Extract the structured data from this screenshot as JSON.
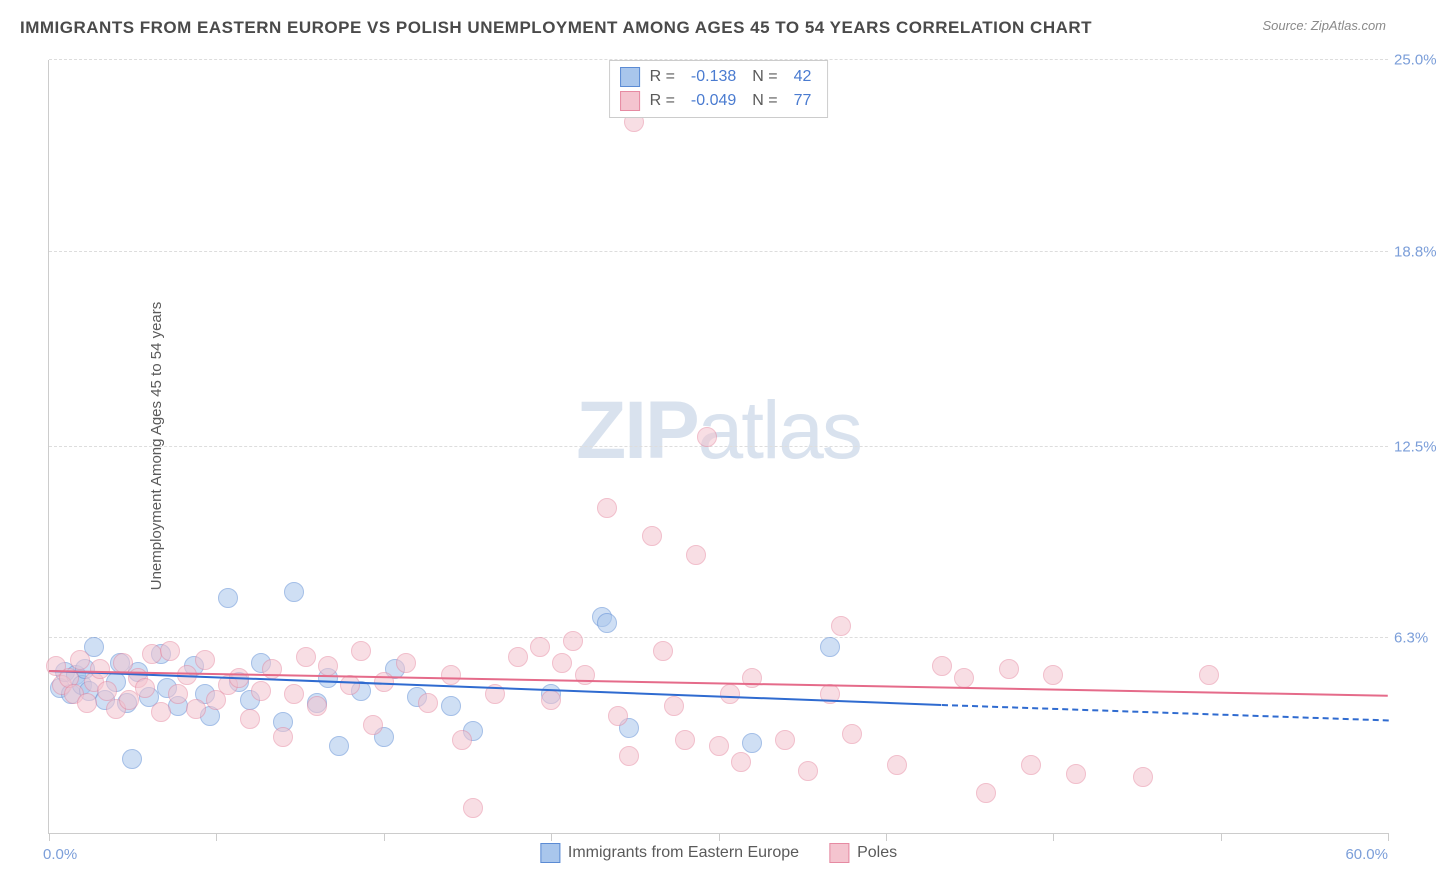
{
  "title": "IMMIGRANTS FROM EASTERN EUROPE VS POLISH UNEMPLOYMENT AMONG AGES 45 TO 54 YEARS CORRELATION CHART",
  "source": "Source: ZipAtlas.com",
  "y_axis_label": "Unemployment Among Ages 45 to 54 years",
  "watermark_zip": "ZIP",
  "watermark_atlas": "atlas",
  "chart": {
    "type": "scatter",
    "background_color": "#ffffff",
    "grid_color": "#dddddd",
    "axis_color": "#cccccc",
    "xlim": [
      0,
      60
    ],
    "ylim": [
      0,
      25
    ],
    "x_labels": {
      "min": "0.0%",
      "max": "60.0%"
    },
    "y_ticks": [
      {
        "value": 6.3,
        "label": "6.3%"
      },
      {
        "value": 12.5,
        "label": "12.5%"
      },
      {
        "value": 18.8,
        "label": "18.8%"
      },
      {
        "value": 25.0,
        "label": "25.0%"
      }
    ],
    "x_tick_positions": [
      0,
      7.5,
      15,
      22.5,
      30,
      37.5,
      45,
      52.5,
      60
    ],
    "marker_radius": 10,
    "marker_opacity": 0.55,
    "series": [
      {
        "name": "Immigrants from Eastern Europe",
        "color_fill": "#a9c6ec",
        "color_stroke": "#5b8bd4",
        "R": "-0.138",
        "N": "42",
        "trend": {
          "x0": 0,
          "y0": 5.2,
          "x1": 40,
          "y1": 4.1,
          "dash_x1": 60,
          "dash_y1": 3.6,
          "color": "#2f6bd0",
          "width": 2
        },
        "points": [
          [
            0.5,
            4.7
          ],
          [
            0.7,
            5.2
          ],
          [
            1.0,
            4.5
          ],
          [
            1.2,
            5.1
          ],
          [
            1.5,
            4.8
          ],
          [
            1.6,
            5.3
          ],
          [
            1.8,
            4.6
          ],
          [
            2.0,
            6.0
          ],
          [
            2.5,
            4.3
          ],
          [
            3.0,
            4.9
          ],
          [
            3.2,
            5.5
          ],
          [
            3.5,
            4.2
          ],
          [
            3.7,
            2.4
          ],
          [
            4.0,
            5.2
          ],
          [
            4.5,
            4.4
          ],
          [
            5.0,
            5.8
          ],
          [
            5.3,
            4.7
          ],
          [
            5.8,
            4.1
          ],
          [
            6.5,
            5.4
          ],
          [
            7.0,
            4.5
          ],
          [
            7.2,
            3.8
          ],
          [
            8.0,
            7.6
          ],
          [
            8.5,
            4.9
          ],
          [
            9.0,
            4.3
          ],
          [
            9.5,
            5.5
          ],
          [
            10.5,
            3.6
          ],
          [
            11.0,
            7.8
          ],
          [
            12.0,
            4.2
          ],
          [
            12.5,
            5.0
          ],
          [
            13.0,
            2.8
          ],
          [
            14.0,
            4.6
          ],
          [
            15.0,
            3.1
          ],
          [
            15.5,
            5.3
          ],
          [
            16.5,
            4.4
          ],
          [
            18.0,
            4.1
          ],
          [
            19.0,
            3.3
          ],
          [
            22.5,
            4.5
          ],
          [
            24.8,
            7.0
          ],
          [
            25.0,
            6.8
          ],
          [
            26.0,
            3.4
          ],
          [
            31.5,
            2.9
          ],
          [
            35.0,
            6.0
          ]
        ]
      },
      {
        "name": "Poles",
        "color_fill": "#f4c4cf",
        "color_stroke": "#e68aa2",
        "R": "-0.049",
        "N": "77",
        "trend": {
          "x0": 0,
          "y0": 5.2,
          "x1": 60,
          "y1": 4.4,
          "color": "#e56b8a",
          "width": 2
        },
        "points": [
          [
            0.3,
            5.4
          ],
          [
            0.6,
            4.8
          ],
          [
            0.9,
            5.0
          ],
          [
            1.1,
            4.5
          ],
          [
            1.4,
            5.6
          ],
          [
            1.7,
            4.2
          ],
          [
            2.0,
            4.9
          ],
          [
            2.3,
            5.3
          ],
          [
            2.6,
            4.6
          ],
          [
            3.0,
            4.0
          ],
          [
            3.3,
            5.5
          ],
          [
            3.6,
            4.3
          ],
          [
            4.0,
            5.0
          ],
          [
            4.3,
            4.7
          ],
          [
            4.6,
            5.8
          ],
          [
            5.0,
            3.9
          ],
          [
            5.4,
            5.9
          ],
          [
            5.8,
            4.5
          ],
          [
            6.2,
            5.1
          ],
          [
            6.6,
            4.0
          ],
          [
            7.0,
            5.6
          ],
          [
            7.5,
            4.3
          ],
          [
            8.0,
            4.8
          ],
          [
            8.5,
            5.0
          ],
          [
            9.0,
            3.7
          ],
          [
            9.5,
            4.6
          ],
          [
            10.0,
            5.3
          ],
          [
            10.5,
            3.1
          ],
          [
            11.0,
            4.5
          ],
          [
            11.5,
            5.7
          ],
          [
            12.0,
            4.1
          ],
          [
            12.5,
            5.4
          ],
          [
            13.5,
            4.8
          ],
          [
            14.0,
            5.9
          ],
          [
            14.5,
            3.5
          ],
          [
            15.0,
            4.9
          ],
          [
            16.0,
            5.5
          ],
          [
            17.0,
            4.2
          ],
          [
            18.0,
            5.1
          ],
          [
            18.5,
            3.0
          ],
          [
            19.0,
            0.8
          ],
          [
            20.0,
            4.5
          ],
          [
            21.0,
            5.7
          ],
          [
            22.0,
            6.0
          ],
          [
            22.5,
            4.3
          ],
          [
            23.0,
            5.5
          ],
          [
            23.5,
            6.2
          ],
          [
            24.0,
            5.1
          ],
          [
            25.0,
            10.5
          ],
          [
            25.5,
            3.8
          ],
          [
            26.0,
            2.5
          ],
          [
            26.2,
            23.0
          ],
          [
            27.0,
            9.6
          ],
          [
            27.5,
            5.9
          ],
          [
            28.0,
            4.1
          ],
          [
            28.5,
            3.0
          ],
          [
            29.0,
            9.0
          ],
          [
            29.5,
            12.8
          ],
          [
            30.0,
            2.8
          ],
          [
            30.5,
            4.5
          ],
          [
            31.0,
            2.3
          ],
          [
            31.5,
            5.0
          ],
          [
            33.0,
            3.0
          ],
          [
            34.0,
            2.0
          ],
          [
            35.0,
            4.5
          ],
          [
            35.5,
            6.7
          ],
          [
            36.0,
            3.2
          ],
          [
            38.0,
            2.2
          ],
          [
            40.0,
            5.4
          ],
          [
            41.0,
            5.0
          ],
          [
            42.0,
            1.3
          ],
          [
            43.0,
            5.3
          ],
          [
            44.0,
            2.2
          ],
          [
            45.0,
            5.1
          ],
          [
            46.0,
            1.9
          ],
          [
            49.0,
            1.8
          ],
          [
            52.0,
            5.1
          ]
        ]
      }
    ],
    "legend_top_labels": {
      "R": "R =",
      "N": "N ="
    },
    "legend_bottom": [
      {
        "label": "Immigrants from Eastern Europe",
        "fill": "#a9c6ec",
        "stroke": "#5b8bd4"
      },
      {
        "label": "Poles",
        "fill": "#f4c4cf",
        "stroke": "#e68aa2"
      }
    ]
  }
}
